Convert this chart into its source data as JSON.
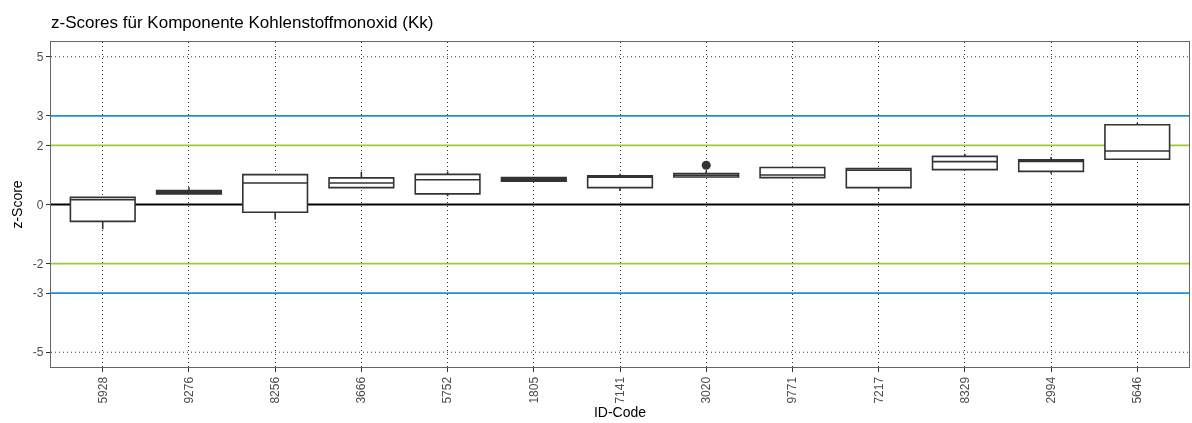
{
  "chart_data": {
    "type": "box",
    "title": "z-Scores für Komponente Kohlenstoffmonoxid (Kk)",
    "xlabel": "ID-Code",
    "ylabel": "z-Score",
    "categories": [
      "5928",
      "9276",
      "8256",
      "3666",
      "5752",
      "1805",
      "7141",
      "3020",
      "9771",
      "7217",
      "8329",
      "2994",
      "5646"
    ],
    "series": [
      {
        "color": "#333333",
        "boxes": [
          {
            "low": -0.84,
            "q1": -0.57,
            "median": 0.16,
            "q3": 0.24,
            "high": 0.24
          },
          {
            "low": 0.35,
            "q1": 0.36,
            "median": 0.42,
            "q3": 0.47,
            "high": 0.58
          },
          {
            "low": -0.51,
            "q1": -0.26,
            "median": 0.73,
            "q3": 1.01,
            "high": 1.01
          },
          {
            "low": 0.56,
            "q1": 0.57,
            "median": 0.73,
            "q3": 0.9,
            "high": 1.11
          },
          {
            "low": 0.28,
            "q1": 0.36,
            "median": 0.84,
            "q3": 1.02,
            "high": 1.12
          },
          {
            "low": 0.78,
            "q1": 0.79,
            "median": 0.85,
            "q3": 0.91,
            "high": 0.92
          },
          {
            "low": 0.46,
            "q1": 0.57,
            "median": 0.92,
            "q3": 0.97,
            "high": 1.04
          },
          {
            "low": 0.92,
            "q1": 0.93,
            "median": 0.99,
            "q3": 1.05,
            "high": 1.15,
            "outliers": [
              1.33
            ]
          },
          {
            "low": 0.9,
            "q1": 0.91,
            "median": 1.0,
            "q3": 1.25,
            "high": 1.25
          },
          {
            "low": 0.44,
            "q1": 0.57,
            "median": 1.16,
            "q3": 1.22,
            "high": 1.22
          },
          {
            "low": 1.18,
            "q1": 1.18,
            "median": 1.45,
            "q3": 1.63,
            "high": 1.72
          },
          {
            "low": 1.04,
            "q1": 1.12,
            "median": 1.46,
            "q3": 1.51,
            "high": 1.61
          },
          {
            "low": 1.53,
            "q1": 1.53,
            "median": 1.81,
            "q3": 2.7,
            "high": 2.76
          }
        ]
      }
    ],
    "ylim": [
      -5.5,
      5.5
    ],
    "yticks": [
      -5,
      -3,
      -2,
      0,
      2,
      3,
      5
    ],
    "grid": true,
    "ref_lines": [
      {
        "axis": "y",
        "value": 3,
        "color": "#1f8dd6"
      },
      {
        "axis": "y",
        "value": 2,
        "color": "#99cc33"
      },
      {
        "axis": "y",
        "value": 0,
        "color": "#000000"
      },
      {
        "axis": "y",
        "value": -2,
        "color": "#99cc33"
      },
      {
        "axis": "y",
        "value": -3,
        "color": "#1f8dd6"
      }
    ]
  }
}
